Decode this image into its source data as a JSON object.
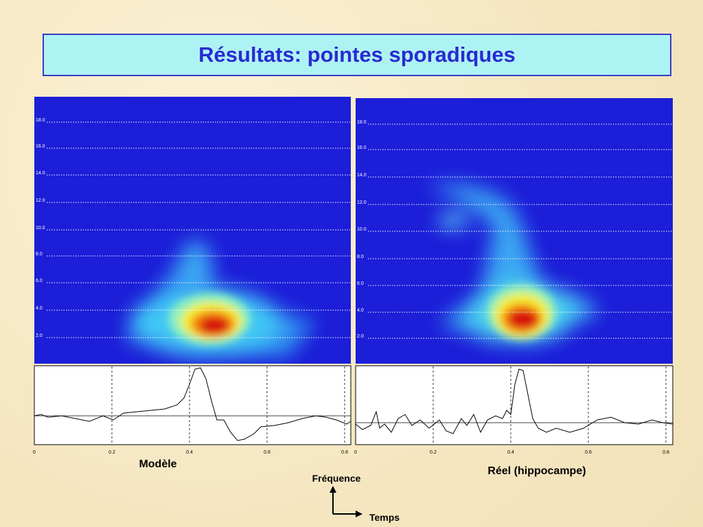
{
  "title": "Résultats: pointes sporadiques",
  "panels": [
    {
      "caption": "Modèle",
      "yticks": [
        "18.0",
        "16.0",
        "14.0",
        "12.0",
        "10.0",
        "8.0",
        "6.0",
        "4.0",
        "2.0"
      ],
      "xticks": [
        "0",
        "0.2",
        "0.4",
        "0.6",
        "0.8"
      ]
    },
    {
      "caption": "Réel (hippocampe)",
      "yticks": [
        "18.0",
        "16.0",
        "14.0",
        "12.0",
        "10.0",
        "8.0",
        "6.0",
        "4.0",
        "2.0"
      ],
      "xticks": [
        "0",
        "0.2",
        "0.4",
        "0.6",
        "0.8"
      ]
    }
  ],
  "axes_legend": {
    "y": "Fréquence",
    "x": "Temps"
  }
}
